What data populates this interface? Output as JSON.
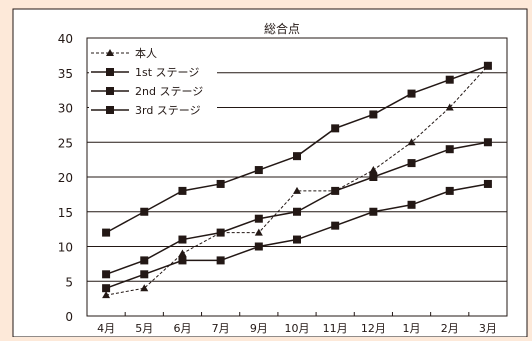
{
  "chart_data": {
    "type": "line",
    "title": "総合点",
    "xlabel": "",
    "ylabel": "",
    "categories": [
      "4月",
      "5月",
      "6月",
      "7月",
      "9月",
      "10月",
      "11月",
      "12月",
      "1月",
      "2月",
      "3月"
    ],
    "ylim": [
      0,
      40
    ],
    "yticks": [
      0,
      5,
      10,
      15,
      20,
      25,
      30,
      35,
      40
    ],
    "grid": "horizontal",
    "legend_position": "top-left",
    "series": [
      {
        "name": "本人",
        "marker": "triangle",
        "dashed": true,
        "values": [
          3,
          4,
          9,
          12,
          12,
          18,
          18,
          21,
          25,
          30,
          36
        ]
      },
      {
        "name": "1st ステージ",
        "marker": "square",
        "dashed": false,
        "values": [
          12,
          15,
          18,
          19,
          21,
          23,
          27,
          29,
          32,
          34,
          36
        ]
      },
      {
        "name": "2nd ステージ",
        "marker": "square",
        "dashed": false,
        "values": [
          6,
          8,
          11,
          12,
          14,
          15,
          18,
          20,
          22,
          24,
          25
        ]
      },
      {
        "name": "3rd ステージ",
        "marker": "square",
        "dashed": false,
        "values": [
          4,
          6,
          8,
          8,
          10,
          11,
          13,
          15,
          16,
          18,
          19
        ]
      }
    ],
    "colors": {
      "line": "#231815",
      "background": "#fde9d9",
      "plot": "#ffffff"
    }
  }
}
